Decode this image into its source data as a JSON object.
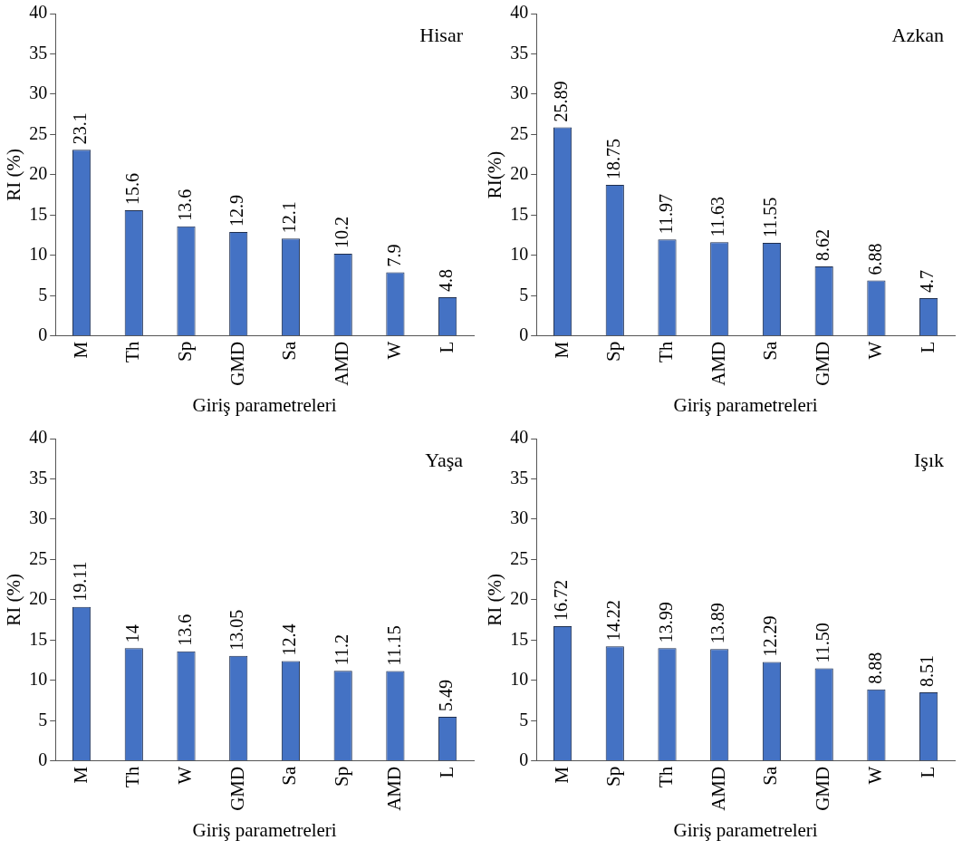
{
  "chart_data": [
    {
      "type": "bar",
      "title": "Hisar",
      "xlabel": "Giriş parametreleri",
      "ylabel": "RI (%)",
      "categories": [
        "M",
        "Th",
        "Sp",
        "GMD",
        "Sa",
        "AMD",
        "W",
        "L"
      ],
      "values": [
        23.1,
        15.6,
        13.6,
        12.9,
        12.1,
        10.2,
        7.9,
        4.8
      ],
      "value_labels": [
        "23.1",
        "15.6",
        "13.6",
        "12.9",
        "12.1",
        "10.2",
        "7.9",
        "4.8"
      ],
      "color": "#4472c4",
      "ylim": [
        0,
        40
      ],
      "yticks": [
        0,
        5,
        10,
        15,
        20,
        25,
        30,
        35,
        40
      ],
      "grid": false,
      "legend": false
    },
    {
      "type": "bar",
      "title": "Azkan",
      "xlabel": "Giriş parametreleri",
      "ylabel": "RI(%)",
      "categories": [
        "M",
        "Sp",
        "Th",
        "AMD",
        "Sa",
        "GMD",
        "W",
        "L"
      ],
      "values": [
        25.89,
        18.75,
        11.97,
        11.63,
        11.55,
        8.62,
        6.88,
        4.7
      ],
      "value_labels": [
        "25.89",
        "18.75",
        "11.97",
        "11.63",
        "11.55",
        "8.62",
        "6.88",
        "4.7"
      ],
      "color": "#4472c4",
      "ylim": [
        0,
        40
      ],
      "yticks": [
        0,
        5,
        10,
        15,
        20,
        25,
        30,
        35,
        40
      ],
      "grid": false,
      "legend": false
    },
    {
      "type": "bar",
      "title": "Yaşa",
      "xlabel": "Giriş parametreleri",
      "ylabel": "RI (%)",
      "categories": [
        "M",
        "Th",
        "W",
        "GMD",
        "Sa",
        "Sp",
        "AMD",
        "L"
      ],
      "values": [
        19.11,
        14,
        13.6,
        13.05,
        12.4,
        11.2,
        11.15,
        5.49
      ],
      "value_labels": [
        "19.11",
        "14",
        "13.6",
        "13.05",
        "12.4",
        "11.2",
        "11.15",
        "5.49"
      ],
      "color": "#4472c4",
      "ylim": [
        0,
        40
      ],
      "yticks": [
        0,
        5,
        10,
        15,
        20,
        25,
        30,
        35,
        40
      ],
      "grid": false,
      "legend": false
    },
    {
      "type": "bar",
      "title": "Işık",
      "xlabel": "Giriş parametreleri",
      "ylabel": "RI (%)",
      "categories": [
        "M",
        "Sp",
        "Th",
        "AMD",
        "Sa",
        "GMD",
        "W",
        "L"
      ],
      "values": [
        16.72,
        14.22,
        13.99,
        13.89,
        12.29,
        11.5,
        8.88,
        8.51
      ],
      "value_labels": [
        "16.72",
        "14.22",
        "13.99",
        "13.89",
        "12.29",
        "11.50",
        "8.88",
        "8.51"
      ],
      "color": "#4472c4",
      "ylim": [
        0,
        40
      ],
      "yticks": [
        0,
        5,
        10,
        15,
        20,
        25,
        30,
        35,
        40
      ],
      "grid": false,
      "legend": false
    }
  ]
}
